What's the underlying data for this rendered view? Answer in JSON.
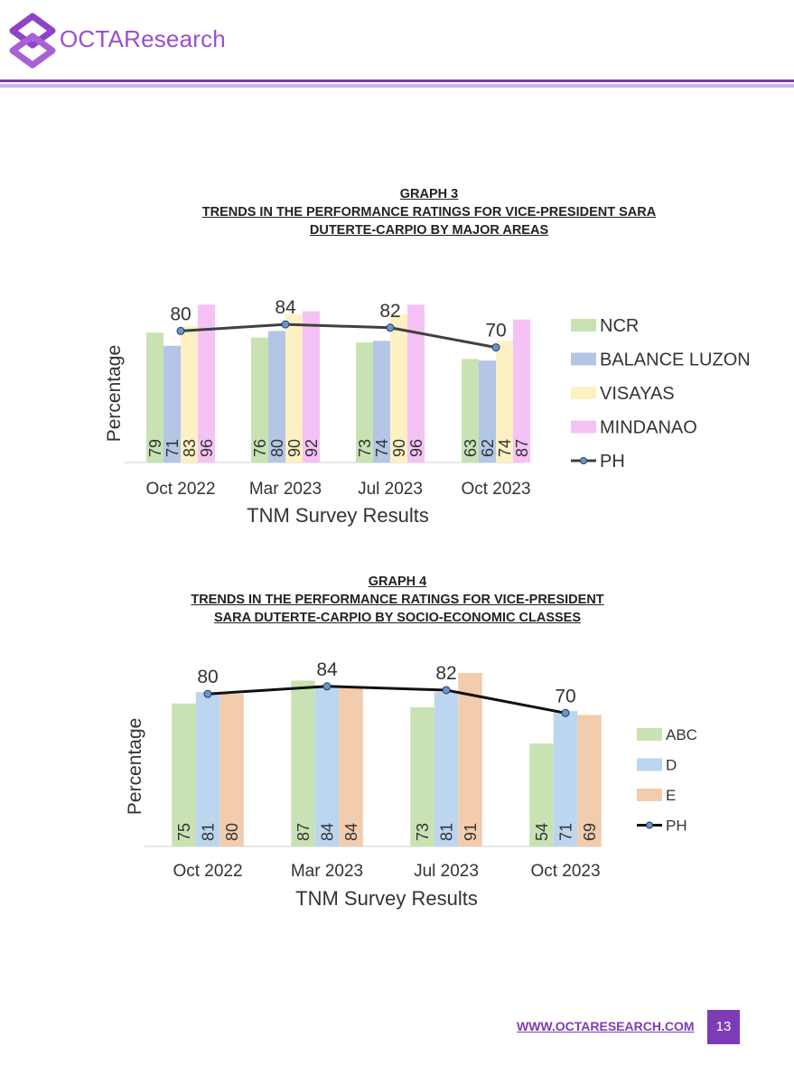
{
  "header": {
    "brand": "OCTAResearch"
  },
  "footer": {
    "link": "WWW.OCTARESEARCH.COM",
    "page": "13"
  },
  "colors": {
    "purple": "#7d3cb5",
    "ncr": "#c9e2b3",
    "balance_luzon": "#b3c6e6",
    "visayas": "#fdf1c4",
    "mindanao": "#f5c2f5",
    "abc": "#c9e2b3",
    "d": "#bcd6ef",
    "e": "#f2ccad",
    "ph3": "#404040",
    "ph4": "#111111"
  },
  "chart_data": [
    {
      "type": "bar",
      "title": [
        "GRAPH 3",
        "TRENDS IN THE PERFORMANCE RATINGS FOR VICE-PRESIDENT SARA",
        "DUTERTE-CARPIO  BY MAJOR AREAS"
      ],
      "xlabel": "TNM Survey Results",
      "ylabel": "Percentage",
      "categories": [
        "Oct 2022",
        "Mar 2023",
        "Jul 2023",
        "Oct 2023"
      ],
      "ylim": [
        0,
        100
      ],
      "series": [
        {
          "name": "NCR",
          "values": [
            79,
            76,
            73,
            63
          ]
        },
        {
          "name": "BALANCE LUZON",
          "values": [
            71,
            80,
            74,
            62
          ]
        },
        {
          "name": "VISAYAS",
          "values": [
            83,
            90,
            90,
            74
          ]
        },
        {
          "name": "MINDANAO",
          "values": [
            96,
            92,
            96,
            87
          ]
        }
      ],
      "line": {
        "name": "PH",
        "values": [
          80,
          84,
          82,
          70
        ]
      },
      "legend": "right"
    },
    {
      "type": "bar",
      "title": [
        "GRAPH 4",
        "TRENDS IN THE PERFORMANCE RATINGS FOR VICE-PRESIDENT",
        "SARA DUTERTE-CARPIO  BY SOCIO-ECONOMIC CLASSES"
      ],
      "xlabel": "TNM Survey Results",
      "ylabel": "Percentage",
      "categories": [
        "Oct 2022",
        "Mar 2023",
        "Jul 2023",
        "Oct 2023"
      ],
      "ylim": [
        0,
        100
      ],
      "series": [
        {
          "name": "ABC",
          "values": [
            75,
            87,
            73,
            54
          ]
        },
        {
          "name": "D",
          "values": [
            81,
            84,
            81,
            71
          ]
        },
        {
          "name": "E",
          "values": [
            80,
            84,
            91,
            69
          ]
        }
      ],
      "line": {
        "name": "PH",
        "values": [
          80,
          84,
          82,
          70
        ]
      },
      "legend": "right"
    }
  ]
}
